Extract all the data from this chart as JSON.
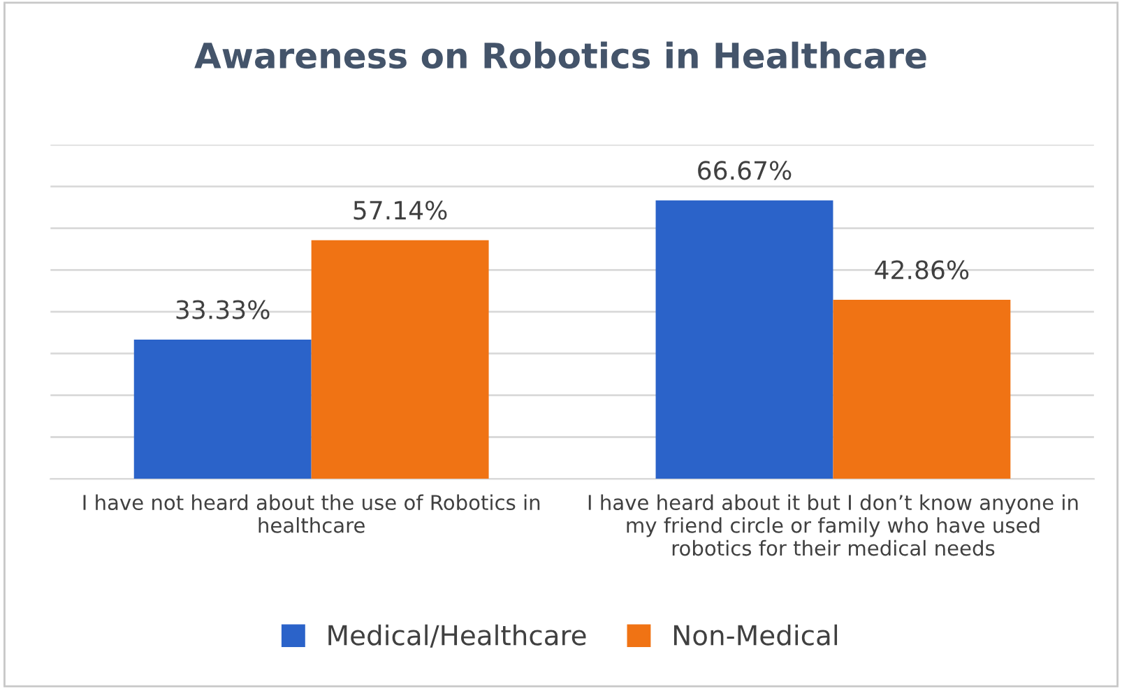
{
  "chart_data": {
    "type": "bar",
    "title": "Awareness on Robotics in Healthcare",
    "categories": [
      "I have not heard about the use of Robotics in healthcare",
      "I have heard about it but I don’t know anyone in my friend circle or family who have used robotics for their medical needs"
    ],
    "series": [
      {
        "name": "Medical/Healthcare",
        "color": "#2b63c9",
        "values": [
          33.33,
          66.67
        ],
        "value_labels": [
          "33.33%",
          "66.67%"
        ]
      },
      {
        "name": "Non-Medical",
        "color": "#f07314",
        "values": [
          57.14,
          42.86
        ],
        "value_labels": [
          "57.14%",
          "42.86%"
        ]
      }
    ],
    "ylim": [
      0,
      80
    ],
    "yticks": [
      {
        "value": 0,
        "label": null
      },
      {
        "value": 10,
        "label": null
      },
      {
        "value": 20,
        "label": null
      },
      {
        "value": 30,
        "label": null
      },
      {
        "value": 40,
        "label": null
      },
      {
        "value": 50,
        "label": null
      },
      {
        "value": 60,
        "label": null
      },
      {
        "value": 70,
        "label": null
      },
      {
        "value": 80,
        "label": null
      }
    ],
    "grid": "y",
    "legend": "bottom",
    "tick_labels": "x"
  }
}
